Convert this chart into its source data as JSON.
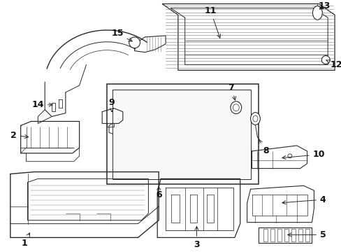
{
  "bg_color": "#ffffff",
  "line_color": "#2a2a2a",
  "text_color": "#111111",
  "fig_width": 4.89,
  "fig_height": 3.6,
  "dpi": 100
}
